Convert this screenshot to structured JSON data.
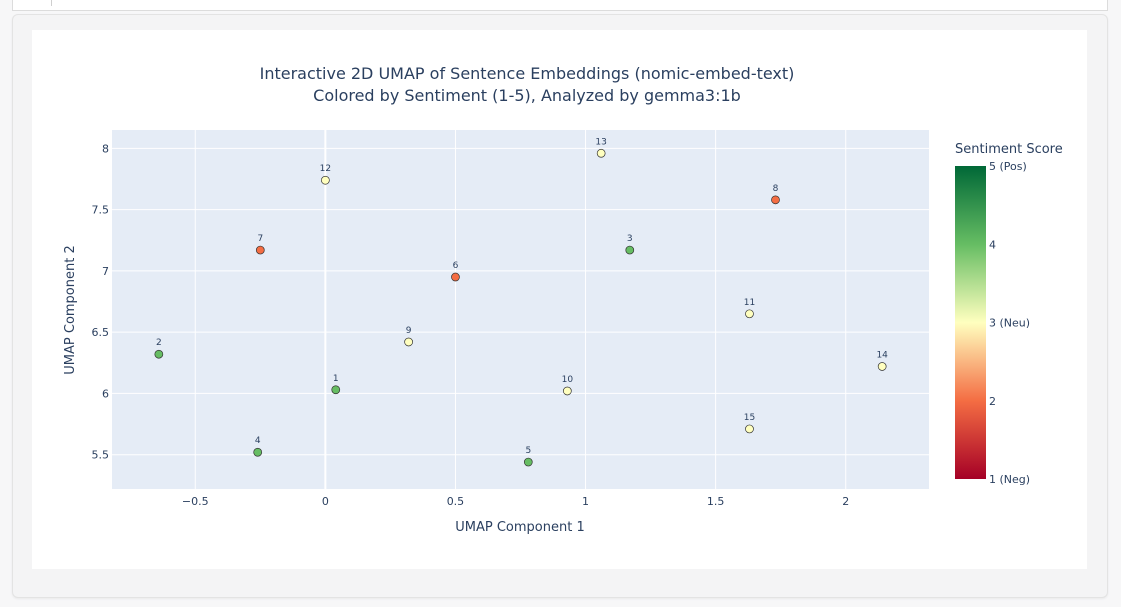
{
  "chart_data": {
    "type": "scatter",
    "title": "Interactive 2D UMAP of Sentence Embeddings (nomic-embed-text)",
    "subtitle": "Colored by Sentiment (1-5), Analyzed by gemma3:1b",
    "xlabel": "UMAP Component 1",
    "ylabel": "UMAP Component 2",
    "xlim": [
      -0.82,
      2.32
    ],
    "ylim": [
      5.22,
      8.15
    ],
    "xticks": [
      -0.5,
      0,
      0.5,
      1,
      1.5,
      2
    ],
    "xtick_labels": [
      "−0.5",
      "0",
      "0.5",
      "1",
      "1.5",
      "2"
    ],
    "yticks": [
      5.5,
      6,
      6.5,
      7,
      7.5,
      8
    ],
    "ytick_labels": [
      "5.5",
      "6",
      "6.5",
      "7",
      "7.5",
      "8"
    ],
    "grid": true,
    "points": [
      {
        "label": "1",
        "x": 0.04,
        "y": 6.03,
        "sentiment": 4
      },
      {
        "label": "2",
        "x": -0.64,
        "y": 6.32,
        "sentiment": 4
      },
      {
        "label": "3",
        "x": 1.17,
        "y": 7.17,
        "sentiment": 4
      },
      {
        "label": "4",
        "x": -0.26,
        "y": 5.52,
        "sentiment": 4
      },
      {
        "label": "5",
        "x": 0.78,
        "y": 5.44,
        "sentiment": 4
      },
      {
        "label": "6",
        "x": 0.5,
        "y": 6.95,
        "sentiment": 2
      },
      {
        "label": "7",
        "x": -0.25,
        "y": 7.17,
        "sentiment": 2
      },
      {
        "label": "8",
        "x": 1.73,
        "y": 7.58,
        "sentiment": 2
      },
      {
        "label": "9",
        "x": 0.32,
        "y": 6.42,
        "sentiment": 3
      },
      {
        "label": "10",
        "x": 0.93,
        "y": 6.02,
        "sentiment": 3
      },
      {
        "label": "11",
        "x": 1.63,
        "y": 6.65,
        "sentiment": 3
      },
      {
        "label": "12",
        "x": 0.0,
        "y": 7.74,
        "sentiment": 3
      },
      {
        "label": "13",
        "x": 1.06,
        "y": 7.96,
        "sentiment": 3
      },
      {
        "label": "14",
        "x": 2.14,
        "y": 6.22,
        "sentiment": 3
      },
      {
        "label": "15",
        "x": 1.63,
        "y": 5.71,
        "sentiment": 3
      }
    ],
    "colorbar": {
      "title": "Sentiment Score",
      "range": [
        1,
        5
      ],
      "ticks": [
        {
          "value": 5,
          "label": "5 (Pos)"
        },
        {
          "value": 4,
          "label": "4"
        },
        {
          "value": 3,
          "label": "3 (Neu)"
        },
        {
          "value": 2,
          "label": "2"
        },
        {
          "value": 1,
          "label": "1 (Neg)"
        }
      ],
      "colorscale": [
        "#a50026",
        "#f46d43",
        "#ffffbf",
        "#66bd63",
        "#006837"
      ]
    },
    "colors": {
      "plot_bg": "#e5ecf6",
      "grid": "#ffffff",
      "text": "#2a3f5f"
    }
  }
}
